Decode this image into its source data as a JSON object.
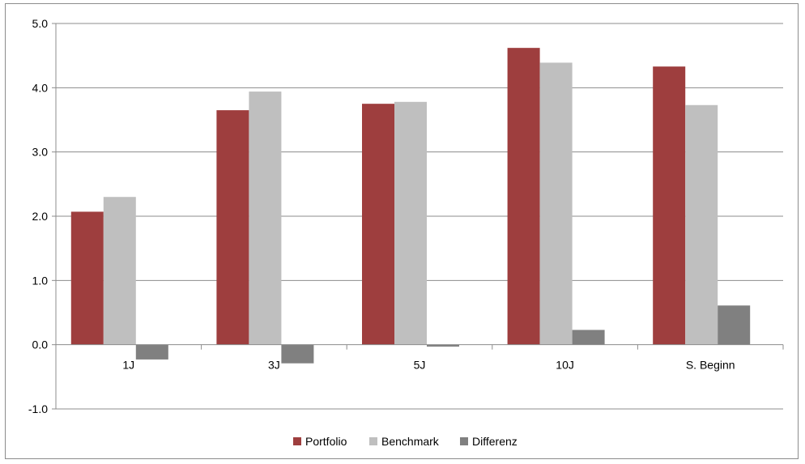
{
  "chart_data": {
    "type": "bar",
    "categories": [
      "1J",
      "3J",
      "5J",
      "10J",
      "S. Beginn"
    ],
    "series": [
      {
        "name": "Portfolio",
        "values": [
          2.07,
          3.65,
          3.75,
          4.62,
          4.33
        ],
        "color": "#9e3e3e"
      },
      {
        "name": "Benchmark",
        "values": [
          2.3,
          3.94,
          3.78,
          4.39,
          3.73
        ],
        "color": "#bfbfbf"
      },
      {
        "name": "Differenz",
        "values": [
          -0.23,
          -0.29,
          -0.03,
          0.23,
          0.61
        ],
        "color": "#808080"
      }
    ],
    "ylim": [
      -1.0,
      5.0
    ],
    "yticks": [
      "-1.0",
      "0.0",
      "1.0",
      "2.0",
      "3.0",
      "4.0",
      "5.0"
    ],
    "ytick_values": [
      -1,
      0,
      1,
      2,
      3,
      4,
      5
    ],
    "grid": true,
    "legend_position": "bottom-center",
    "title": "",
    "xlabel": "",
    "ylabel": ""
  }
}
